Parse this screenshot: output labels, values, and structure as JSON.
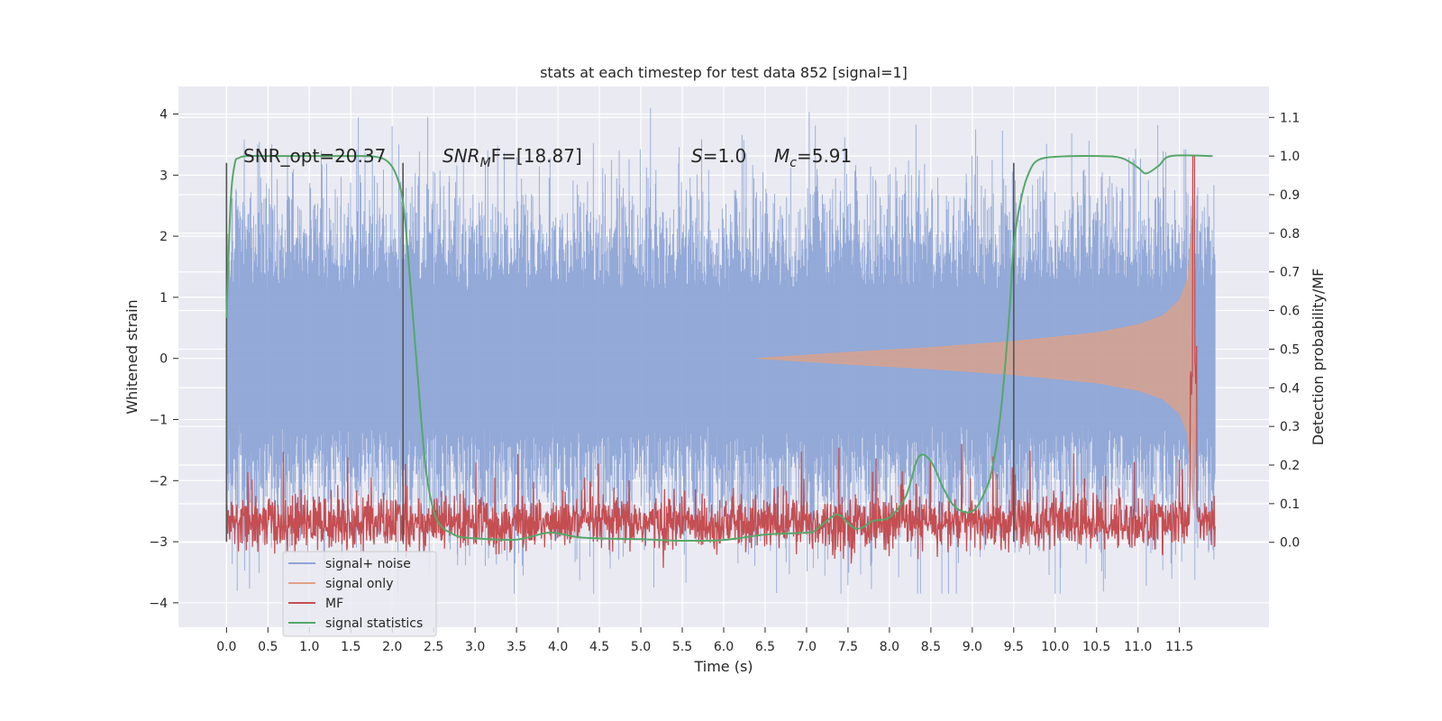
{
  "chart_data": {
    "type": "line",
    "title": "stats at each timestep for test data 852 [signal=1]",
    "xlabel": "Time (s)",
    "ylabel_left": "Whitened strain",
    "ylabel_right": "Detection probability/MF",
    "xlim": [
      -0.58,
      12.58
    ],
    "ylim_left": [
      -4.4,
      4.45
    ],
    "ylim_right": [
      -0.22,
      1.18
    ],
    "x_ticks": [
      "0.0",
      "0.5",
      "1.0",
      "1.5",
      "2.0",
      "2.5",
      "3.0",
      "3.5",
      "4.0",
      "4.5",
      "5.0",
      "5.5",
      "6.0",
      "6.5",
      "7.0",
      "7.5",
      "8.0",
      "8.5",
      "9.0",
      "9.5",
      "10.0",
      "10.5",
      "11.0",
      "11.5"
    ],
    "y_left_ticks": [
      "−4",
      "−3",
      "−2",
      "−1",
      "0",
      "1",
      "2",
      "3",
      "4"
    ],
    "y_right_ticks": [
      "0.0",
      "0.1",
      "0.2",
      "0.3",
      "0.4",
      "0.5",
      "0.6",
      "0.7",
      "0.8",
      "0.9",
      "1.0",
      "1.1"
    ],
    "grid": true,
    "legend_position": "lower-left",
    "annotations": {
      "snr_opt": "SNR_opt=20.37",
      "snr_mf_sym": "SNR",
      "snr_mf_sub": "M",
      "snr_mf_rest": "F=[18.87]",
      "s_sym": "S",
      "s_rest": "=1.0",
      "mc_sym": "M",
      "mc_sub": "c",
      "mc_rest": "=5.91"
    },
    "vertical_markers": [
      0.0,
      2.13,
      9.5
    ],
    "series": [
      {
        "name": "signal+ noise",
        "color": "#8ea5d6",
        "description_of_shape": "gaussian noise, amplitude ~±2 with spikes up to ~4, x 0 to 11.93"
      },
      {
        "name": "signal only",
        "color": "#e0a184",
        "envelope": {
          "x": [
            6.4,
            7.5,
            8.5,
            9.5,
            10.5,
            11.0,
            11.3,
            11.5,
            11.6,
            11.67,
            11.7
          ],
          "amp": [
            0.0,
            0.1,
            0.18,
            0.28,
            0.42,
            0.55,
            0.7,
            0.95,
            1.3,
            2.6,
            0.0
          ]
        }
      },
      {
        "name": "MF",
        "color": "#c44e52",
        "baseline": 0.05,
        "peak": {
          "x": 11.67,
          "y": 1.0
        }
      },
      {
        "name": "signal statistics",
        "color": "#55a868",
        "x": [
          0.0,
          0.05,
          0.1,
          0.15,
          0.25,
          0.5,
          1.0,
          1.5,
          1.8,
          1.95,
          2.05,
          2.13,
          2.2,
          2.3,
          2.4,
          2.5,
          2.6,
          2.7,
          2.8,
          3.0,
          3.5,
          3.9,
          4.3,
          5.0,
          5.5,
          6.0,
          6.5,
          7.0,
          7.1,
          7.3,
          7.4,
          7.6,
          7.8,
          8.0,
          8.2,
          8.35,
          8.5,
          8.65,
          8.8,
          9.0,
          9.15,
          9.25,
          9.35,
          9.45,
          9.5,
          9.6,
          9.7,
          9.8,
          10.0,
          10.5,
          10.8,
          11.0,
          11.1,
          11.25,
          11.4,
          11.9
        ],
        "y": [
          0.58,
          0.88,
          0.98,
          0.995,
          1.0,
          1.0,
          1.0,
          1.0,
          0.998,
          0.985,
          0.95,
          0.88,
          0.72,
          0.45,
          0.2,
          0.08,
          0.04,
          0.025,
          0.015,
          0.01,
          0.007,
          0.025,
          0.012,
          0.008,
          0.004,
          0.006,
          0.02,
          0.025,
          0.03,
          0.065,
          0.07,
          0.035,
          0.055,
          0.065,
          0.12,
          0.22,
          0.21,
          0.14,
          0.09,
          0.08,
          0.13,
          0.2,
          0.35,
          0.6,
          0.77,
          0.9,
          0.965,
          0.99,
          0.998,
          1.0,
          0.995,
          0.97,
          0.955,
          0.975,
          1.0,
          1.0
        ]
      }
    ]
  }
}
